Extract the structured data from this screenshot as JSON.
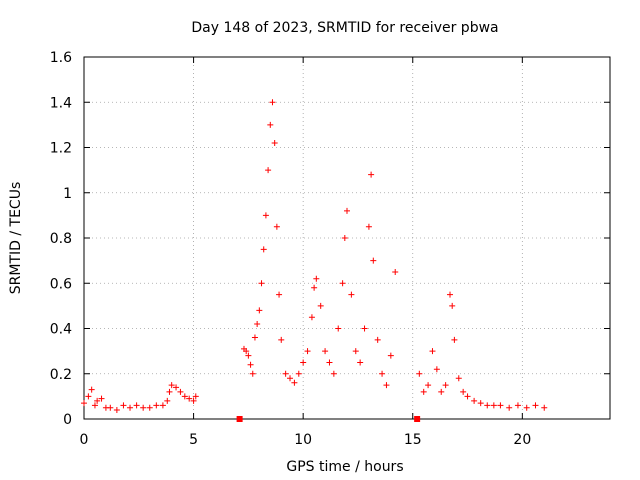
{
  "chart_data": {
    "type": "scatter",
    "title": "Day 148 of 2023, SRMTID for receiver pbwa",
    "xlabel": "GPS time / hours",
    "ylabel": "SRMTID / TECUs",
    "xlim": [
      0,
      24
    ],
    "ylim": [
      0,
      1.6
    ],
    "xticks": [
      0,
      5,
      10,
      15,
      20
    ],
    "yticks": [
      0,
      0.2,
      0.4,
      0.6,
      0.8,
      1,
      1.2,
      1.4,
      1.6
    ],
    "xtick_labels": [
      "0",
      "5",
      "10",
      "15",
      "20"
    ],
    "ytick_labels": [
      "0",
      "0.2",
      "0.4",
      "0.6",
      "0.8",
      "1",
      "1.2",
      "1.4",
      "1.6"
    ],
    "grid": true,
    "marker": "+",
    "color": "#ff0000",
    "series": [
      {
        "name": "pbwa",
        "x": [
          0.0,
          0.2,
          0.35,
          0.5,
          0.6,
          0.8,
          1.0,
          1.2,
          1.5,
          1.8,
          2.1,
          2.4,
          2.7,
          3.0,
          3.3,
          3.6,
          3.8,
          3.9,
          4.0,
          4.2,
          4.4,
          4.6,
          4.8,
          5.0,
          5.1,
          7.3,
          7.4,
          7.5,
          7.6,
          7.7,
          7.8,
          7.9,
          8.0,
          8.1,
          8.2,
          8.3,
          8.4,
          8.5,
          8.6,
          8.7,
          8.8,
          8.9,
          9.0,
          9.2,
          9.4,
          9.6,
          9.8,
          10.0,
          10.2,
          10.4,
          10.5,
          10.6,
          10.8,
          11.0,
          11.2,
          11.4,
          11.6,
          11.8,
          11.9,
          12.0,
          12.2,
          12.4,
          12.6,
          12.8,
          13.0,
          13.1,
          13.2,
          13.4,
          13.6,
          13.8,
          14.0,
          14.2,
          15.3,
          15.5,
          15.7,
          15.9,
          16.1,
          16.3,
          16.5,
          16.7,
          16.8,
          16.9,
          17.1,
          17.3,
          17.5,
          17.8,
          18.1,
          18.4,
          18.7,
          19.0,
          19.4,
          19.8,
          20.2,
          20.6,
          21.0
        ],
        "y": [
          0.07,
          0.1,
          0.13,
          0.06,
          0.08,
          0.09,
          0.05,
          0.05,
          0.04,
          0.06,
          0.05,
          0.06,
          0.05,
          0.05,
          0.06,
          0.06,
          0.08,
          0.12,
          0.15,
          0.14,
          0.12,
          0.1,
          0.09,
          0.08,
          0.1,
          0.31,
          0.3,
          0.28,
          0.24,
          0.2,
          0.36,
          0.42,
          0.48,
          0.6,
          0.75,
          0.9,
          1.1,
          1.3,
          1.4,
          1.22,
          0.85,
          0.55,
          0.35,
          0.2,
          0.18,
          0.16,
          0.2,
          0.25,
          0.3,
          0.45,
          0.58,
          0.62,
          0.5,
          0.3,
          0.25,
          0.2,
          0.4,
          0.6,
          0.8,
          0.92,
          0.55,
          0.3,
          0.25,
          0.4,
          0.85,
          1.08,
          0.7,
          0.35,
          0.2,
          0.15,
          0.28,
          0.65,
          0.2,
          0.12,
          0.15,
          0.3,
          0.22,
          0.12,
          0.15,
          0.55,
          0.5,
          0.35,
          0.18,
          0.12,
          0.1,
          0.08,
          0.07,
          0.06,
          0.06,
          0.06,
          0.05,
          0.06,
          0.05,
          0.06,
          0.05
        ]
      }
    ],
    "data_gaps": [
      {
        "x": 7.1,
        "y": 0
      },
      {
        "x": 15.2,
        "y": 0
      }
    ]
  }
}
